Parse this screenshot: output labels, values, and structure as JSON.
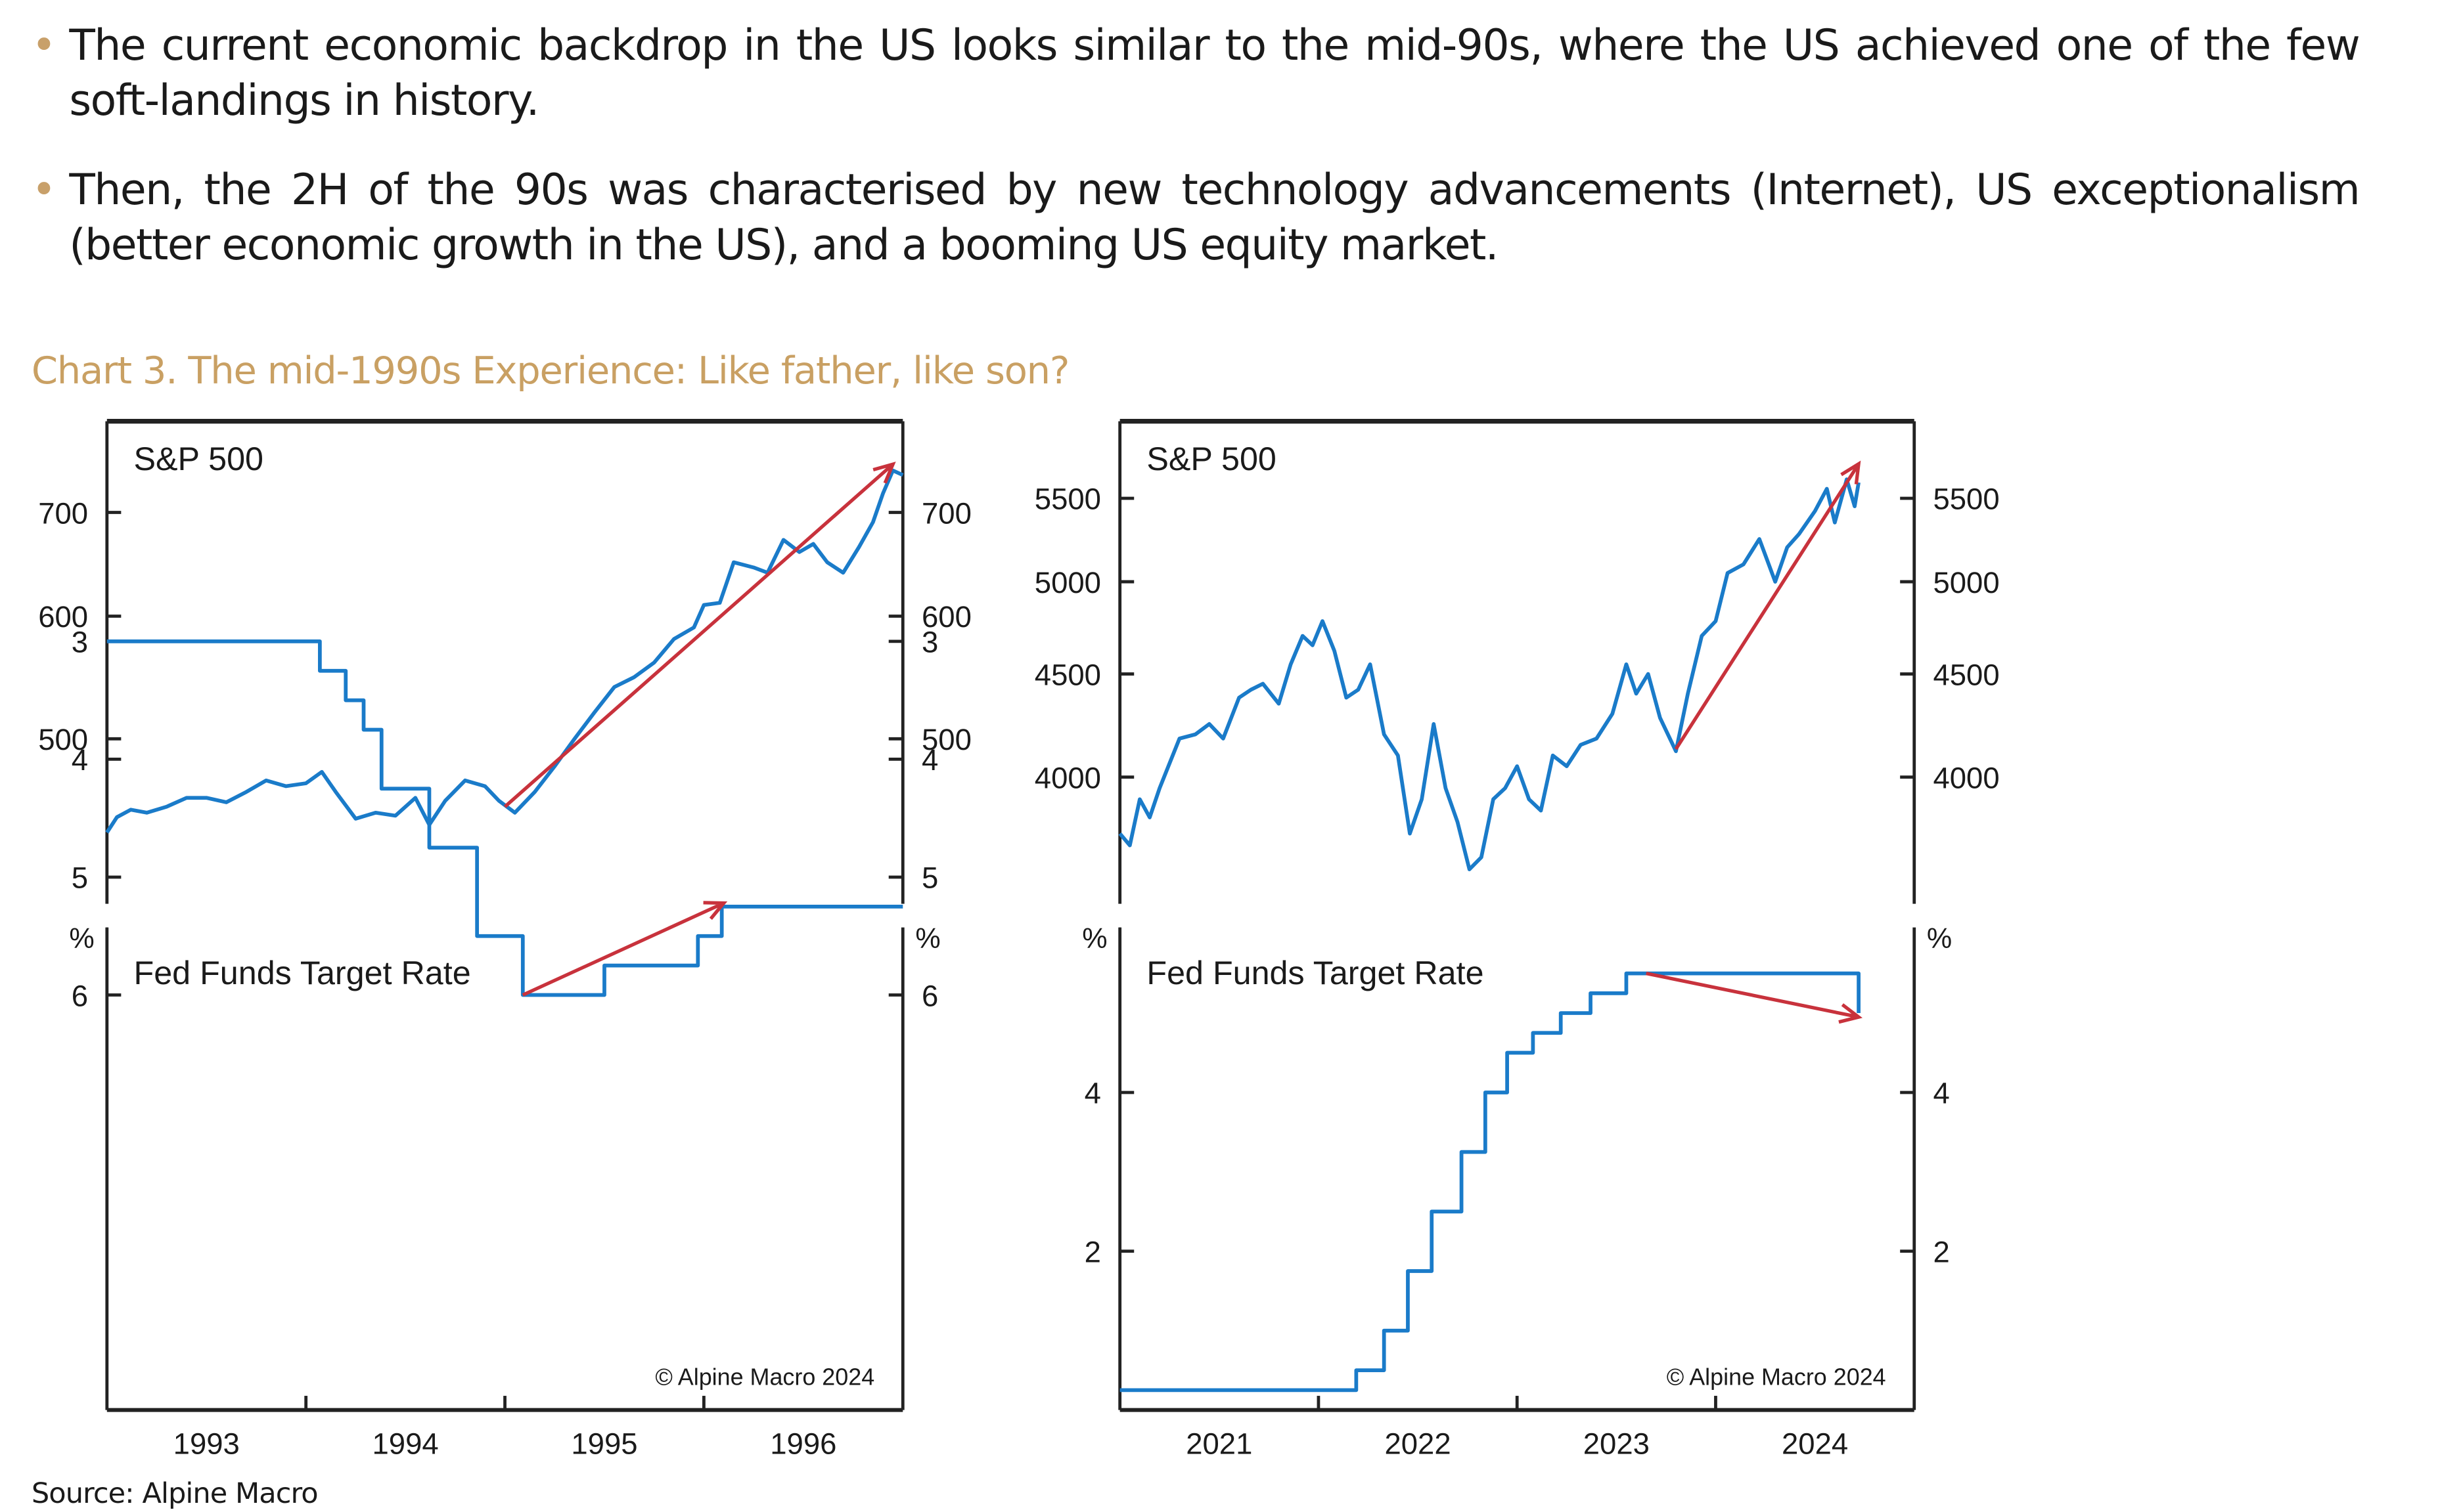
{
  "bullets": [
    "The current economic backdrop in the US looks similar to the mid-90s, where the US achieved one of the few soft-landings in history.",
    "Then, the 2H of the 90s was characterised by new technology advancements (Internet), US exceptionalism (better economic growth in the US), and a booming US equity market."
  ],
  "chart_title": "Chart 3. The mid-1990s Experience: Like father, like son?",
  "source": "Source: Alpine Macro",
  "colors": {
    "bullet": "#c8a06a",
    "title": "#c9a063",
    "series": "#1a7bc9",
    "arrow": "#c8323c"
  },
  "chart_data": [
    {
      "type": "line",
      "panel": "left-top",
      "title": "S&P 500",
      "scale": "log",
      "xlim": [
        1993.0,
        1997.0
      ],
      "ylim": [
        420,
        780
      ],
      "yticks": [
        500,
        600,
        700
      ],
      "series": [
        {
          "x": [
            1993.0,
            1993.05,
            1993.12,
            1993.2,
            1993.3,
            1993.4,
            1993.5,
            1993.6,
            1993.7,
            1993.8,
            1993.9,
            1994.0,
            1994.08,
            1994.15,
            1994.25,
            1994.35,
            1994.45,
            1994.55,
            1994.62,
            1994.7,
            1994.8,
            1994.9,
            1994.97,
            1995.05,
            1995.15,
            1995.25,
            1995.35,
            1995.45,
            1995.55,
            1995.65,
            1995.75,
            1995.85,
            1995.95,
            1996.0,
            1996.08,
            1996.15,
            1996.25,
            1996.32,
            1996.4,
            1996.48,
            1996.55,
            1996.62,
            1996.7,
            1996.78,
            1996.85,
            1996.9,
            1996.95,
            1997.0
          ],
          "y": [
            435,
            445,
            450,
            448,
            452,
            458,
            458,
            455,
            462,
            470,
            466,
            468,
            476,
            462,
            444,
            448,
            446,
            458,
            440,
            456,
            470,
            466,
            456,
            448,
            462,
            480,
            500,
            520,
            540,
            548,
            560,
            580,
            590,
            610,
            612,
            650,
            645,
            640,
            672,
            660,
            668,
            650,
            640,
            665,
            690,
            720,
            745,
            740
          ]
        }
      ],
      "annotation_arrow": {
        "from": [
          1995.0,
          452
        ],
        "to": [
          1996.95,
          752
        ]
      }
    },
    {
      "type": "line",
      "panel": "left-bottom",
      "title": "Fed Funds Target Rate",
      "yunit": "%",
      "xlim": [
        1993.0,
        1997.0
      ],
      "ylim": [
        2.5,
        6.5
      ],
      "yticks": [
        3,
        4,
        5,
        6
      ],
      "xticks": [
        "1993",
        "1994",
        "1995",
        "1996"
      ],
      "series": [
        {
          "step": true,
          "x": [
            1993.0,
            1994.07,
            1994.2,
            1994.29,
            1994.38,
            1994.62,
            1994.86,
            1995.09,
            1995.5,
            1995.97,
            1996.09,
            1997.0
          ],
          "y": [
            3.0,
            3.25,
            3.5,
            3.75,
            4.25,
            4.75,
            5.5,
            6.0,
            5.75,
            5.5,
            5.25,
            5.25
          ]
        }
      ],
      "annotation_arrow": {
        "from": [
          1995.09,
          6.0
        ],
        "to": [
          1996.1,
          5.22
        ]
      },
      "watermark": "© Alpine Macro 2024"
    },
    {
      "type": "line",
      "panel": "right-top",
      "title": "S&P 500",
      "scale": "log",
      "xlim": [
        2021.0,
        2025.0
      ],
      "ylim": [
        3500,
        5950
      ],
      "yticks": [
        4000,
        4500,
        5000,
        5500
      ],
      "series": [
        {
          "x": [
            2021.0,
            2021.05,
            2021.1,
            2021.15,
            2021.2,
            2021.3,
            2021.38,
            2021.45,
            2021.52,
            2021.6,
            2021.66,
            2021.72,
            2021.8,
            2021.86,
            2021.92,
            2021.97,
            2022.02,
            2022.08,
            2022.14,
            2022.2,
            2022.26,
            2022.33,
            2022.4,
            2022.46,
            2022.52,
            2022.58,
            2022.64,
            2022.7,
            2022.76,
            2022.82,
            2022.88,
            2022.94,
            2023.0,
            2023.06,
            2023.12,
            2023.18,
            2023.25,
            2023.32,
            2023.4,
            2023.48,
            2023.55,
            2023.6,
            2023.66,
            2023.72,
            2023.8,
            2023.86,
            2023.93,
            2024.0,
            2024.06,
            2024.14,
            2024.22,
            2024.3,
            2024.36,
            2024.42,
            2024.5,
            2024.56,
            2024.6,
            2024.66,
            2024.7,
            2024.72
          ],
          "y": [
            3750,
            3700,
            3900,
            3820,
            3950,
            4180,
            4200,
            4250,
            4180,
            4380,
            4420,
            4450,
            4350,
            4550,
            4700,
            4650,
            4780,
            4620,
            4380,
            4420,
            4550,
            4200,
            4100,
            3750,
            3900,
            4250,
            3950,
            3800,
            3600,
            3650,
            3900,
            3950,
            4050,
            3900,
            3850,
            4100,
            4050,
            4150,
            4180,
            4300,
            4550,
            4400,
            4500,
            4280,
            4120,
            4400,
            4700,
            4780,
            5050,
            5100,
            5250,
            5000,
            5200,
            5280,
            5420,
            5560,
            5350,
            5620,
            5450,
            5600
          ]
        }
      ],
      "annotation_arrow": {
        "from": [
          2023.8,
          4130
        ],
        "to": [
          2024.72,
          5720
        ]
      }
    },
    {
      "type": "line",
      "panel": "right-bottom",
      "title": "Fed Funds Target Rate",
      "yunit": "%",
      "xlim": [
        2021.0,
        2025.0
      ],
      "ylim": [
        0,
        6
      ],
      "yticks": [
        2,
        4
      ],
      "xticks": [
        "2021",
        "2022",
        "2023",
        "2024"
      ],
      "series": [
        {
          "step": true,
          "x": [
            2021.0,
            2022.19,
            2022.33,
            2022.45,
            2022.57,
            2022.72,
            2022.84,
            2022.95,
            2023.08,
            2023.22,
            2023.37,
            2023.55,
            2024.72,
            2024.72
          ],
          "y": [
            0.25,
            0.5,
            1.0,
            1.75,
            2.5,
            3.25,
            4.0,
            4.5,
            4.75,
            5.0,
            5.25,
            5.5,
            5.5,
            5.0
          ]
        }
      ],
      "annotation_arrow": {
        "from": [
          2023.65,
          5.5
        ],
        "to": [
          2024.72,
          4.95
        ]
      },
      "watermark": "© Alpine Macro 2024"
    }
  ]
}
